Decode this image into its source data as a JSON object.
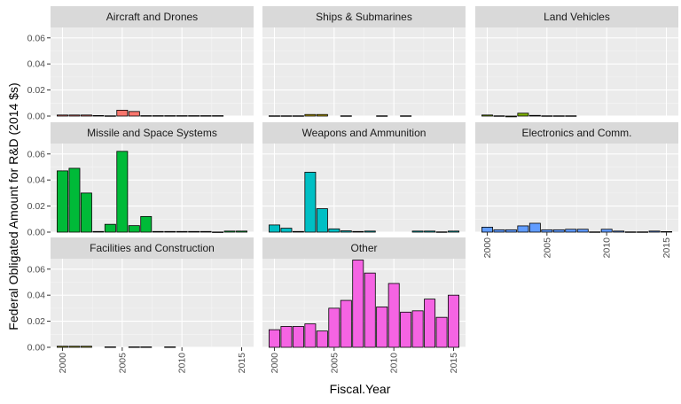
{
  "chart_data": {
    "type": "bar",
    "layout": "facet-grid",
    "xlabel": "Fiscal.Year",
    "ylabel": "Federal Obligated Amount for R&D (2014 $s)",
    "ylim": [
      0,
      0.068
    ],
    "y_ticks": [
      "0.00",
      "0.02",
      "0.04",
      "0.06"
    ],
    "y_tick_values": [
      0,
      0.02,
      0.04,
      0.06
    ],
    "x_ticks": [
      "2000",
      "2005",
      "2010",
      "2015"
    ],
    "x_tick_values": [
      2000,
      2005,
      2010,
      2015
    ],
    "xlim": [
      1999,
      2016
    ],
    "x_tick_rotation": "vertical",
    "grid": true,
    "legend": "none",
    "bar_outline": "#000000",
    "panel_background": "#ebebeb",
    "strip_background": "#d9d9d9",
    "facets": [
      {
        "label": "Aircraft and Drones",
        "color": "#f8766d",
        "x": [
          2000,
          2001,
          2002,
          2003,
          2004,
          2005,
          2006,
          2007,
          2008,
          2009,
          2010,
          2011,
          2012,
          2013
        ],
        "values": [
          0.0008,
          0.0008,
          0.0008,
          0.0004,
          0.0002,
          0.0045,
          0.0035,
          0.0003,
          0.0003,
          0.0003,
          0.0003,
          0.0003,
          0.0003,
          0.0003
        ]
      },
      {
        "label": "Ships & Submarines",
        "color": "#b79f00",
        "x": [
          2000,
          2001,
          2002,
          2003,
          2004,
          2006,
          2009,
          2011
        ],
        "values": [
          0.0002,
          0.0002,
          0.0002,
          0.0012,
          0.0012,
          0.0002,
          0.0002,
          0.0002
        ]
      },
      {
        "label": "Land Vehicles",
        "color": "#7cae00",
        "x": [
          2000,
          2001,
          2002,
          2003,
          2004,
          2005,
          2006,
          2007
        ],
        "values": [
          0.0008,
          0.0002,
          -0.0006,
          0.0022,
          0.0005,
          0.0002,
          0.0002,
          0.0002
        ]
      },
      {
        "label": "Missile and Space Systems",
        "color": "#00ba38",
        "x": [
          2000,
          2001,
          2002,
          2003,
          2004,
          2005,
          2006,
          2007,
          2008,
          2009,
          2010,
          2011,
          2012,
          2013,
          2014,
          2015
        ],
        "values": [
          0.047,
          0.049,
          0.03,
          0.0005,
          0.006,
          0.062,
          0.005,
          0.012,
          0.0005,
          0.0005,
          0.0005,
          0.0005,
          0.0005,
          0.0001,
          0.0008,
          0.0008
        ]
      },
      {
        "label": "Weapons and Ammunition",
        "color": "#00bfc4",
        "x": [
          2000,
          2001,
          2002,
          2003,
          2004,
          2005,
          2006,
          2007,
          2008,
          2012,
          2013,
          2014,
          2015
        ],
        "values": [
          0.0055,
          0.003,
          0.0005,
          0.046,
          0.018,
          0.0025,
          0.001,
          0.0005,
          0.0008,
          0.0008,
          0.0008,
          0.0002,
          0.0008
        ]
      },
      {
        "label": "Electronics and Comm.",
        "color": "#619cff",
        "x": [
          2000,
          2001,
          2002,
          2003,
          2004,
          2005,
          2006,
          2007,
          2008,
          2009,
          2010,
          2011,
          2012,
          2013,
          2014,
          2015
        ],
        "values": [
          0.0038,
          0.0018,
          0.0018,
          0.0048,
          0.0068,
          0.0018,
          0.0018,
          0.0022,
          0.0022,
          0.0002,
          0.0022,
          0.0008,
          0.0002,
          0.0002,
          0.0008,
          0.0004
        ]
      },
      {
        "label": "Facilities and Construction",
        "color": "#a3a500",
        "x": [
          2000,
          2001,
          2002,
          2004,
          2006,
          2007,
          2009
        ],
        "values": [
          0.0008,
          0.0008,
          0.0008,
          0.0003,
          0.0003,
          0.0003,
          0.0003
        ]
      },
      {
        "label": "Other",
        "color": "#f564e3",
        "x": [
          2000,
          2001,
          2002,
          2003,
          2004,
          2005,
          2006,
          2007,
          2008,
          2009,
          2010,
          2011,
          2012,
          2013,
          2014,
          2015
        ],
        "values": [
          0.0135,
          0.016,
          0.016,
          0.018,
          0.0125,
          0.03,
          0.036,
          0.067,
          0.057,
          0.031,
          0.049,
          0.027,
          0.028,
          0.037,
          0.023,
          0.04
        ]
      }
    ]
  }
}
